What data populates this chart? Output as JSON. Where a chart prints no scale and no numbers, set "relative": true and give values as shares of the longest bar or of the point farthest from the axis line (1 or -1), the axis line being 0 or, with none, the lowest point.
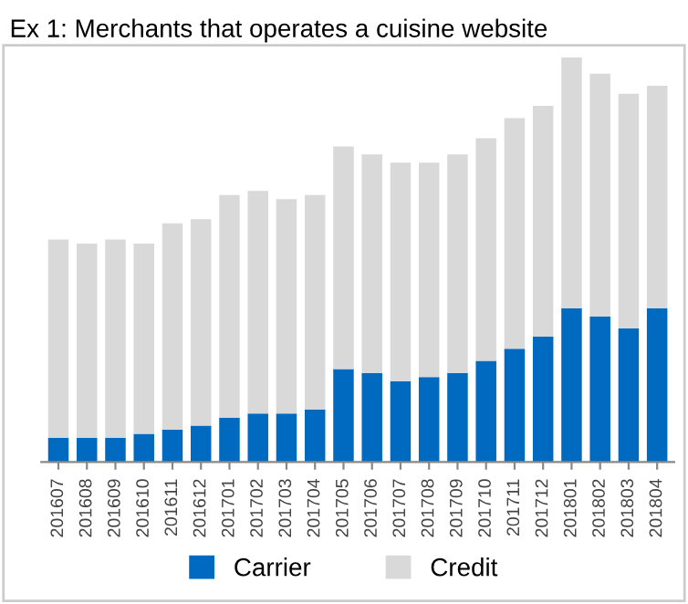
{
  "chart_data": {
    "type": "bar",
    "title": "Ex 1: Merchants that operates a cuisine website",
    "categories": [
      "201607",
      "201608",
      "201609",
      "201610",
      "201611",
      "201612",
      "201701",
      "201702",
      "201703",
      "201704",
      "201705",
      "201706",
      "201707",
      "201708",
      "201709",
      "201710",
      "201711",
      "201712",
      "201801",
      "201802",
      "201803",
      "201804"
    ],
    "stacked": true,
    "relative": true,
    "legend": "bottom",
    "grid": false,
    "series": [
      {
        "name": "Carrier",
        "color": "#0069c0",
        "values": [
          0.06,
          0.06,
          0.06,
          0.07,
          0.08,
          0.09,
          0.11,
          0.12,
          0.12,
          0.13,
          0.23,
          0.22,
          0.2,
          0.21,
          0.22,
          0.25,
          0.28,
          0.31,
          0.38,
          0.36,
          0.33,
          0.38
        ]
      },
      {
        "name": "Credit",
        "color": "#d9d9d9",
        "values": [
          0.49,
          0.48,
          0.49,
          0.47,
          0.51,
          0.51,
          0.55,
          0.55,
          0.53,
          0.53,
          0.55,
          0.54,
          0.54,
          0.53,
          0.54,
          0.55,
          0.57,
          0.57,
          0.62,
          0.6,
          0.58,
          0.55
        ]
      }
    ]
  }
}
